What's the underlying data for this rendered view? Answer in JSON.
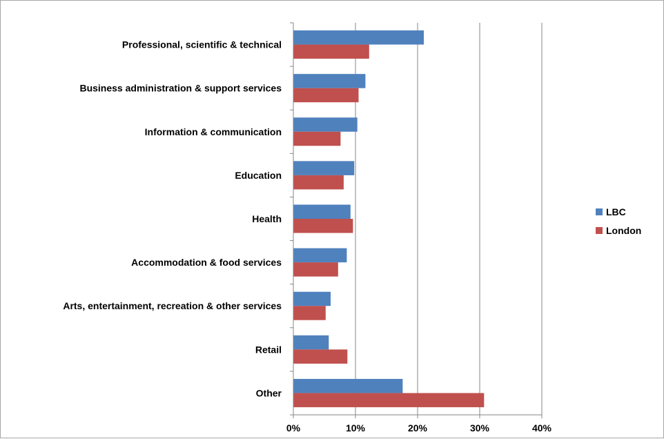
{
  "chart_data": {
    "type": "bar",
    "orientation": "horizontal",
    "categories": [
      "Professional, scientific & technical",
      "Business administration & support services",
      "Information & communication",
      "Education",
      "Health",
      "Accommodation & food services",
      "Arts, entertainment, recreation & other services",
      "Retail",
      "Other"
    ],
    "series": [
      {
        "name": "LBC",
        "color": "#4f81bd",
        "values": [
          21.0,
          11.6,
          10.3,
          9.8,
          9.2,
          8.6,
          6.0,
          5.7,
          17.6
        ]
      },
      {
        "name": "London",
        "color": "#c0504d",
        "values": [
          12.2,
          10.5,
          7.6,
          8.1,
          9.6,
          7.2,
          5.2,
          8.7,
          30.7
        ]
      }
    ],
    "xlim": [
      0,
      40
    ],
    "x_ticks": [
      "0%",
      "10%",
      "20%",
      "30%",
      "40%"
    ],
    "x_tick_values": [
      0,
      10,
      20,
      30,
      40
    ],
    "grid": true,
    "legend_position": "right"
  }
}
